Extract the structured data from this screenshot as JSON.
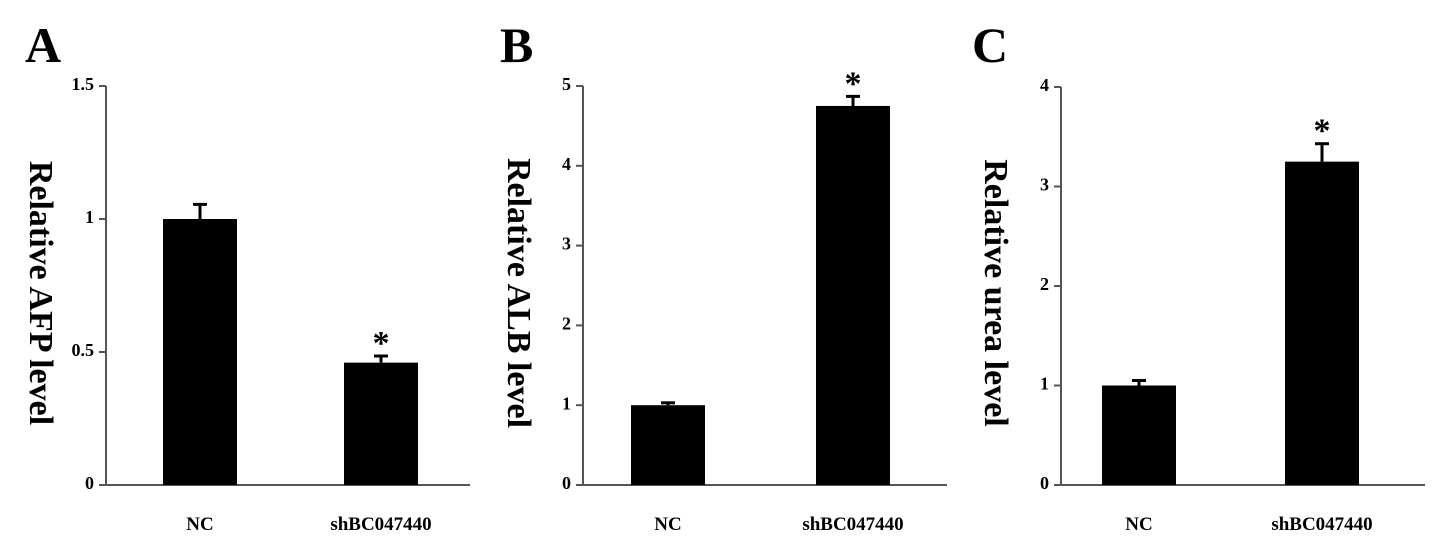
{
  "chart_data": [
    {
      "type": "bar",
      "panel": "A",
      "categories": [
        "NC",
        "shBC047440"
      ],
      "values": [
        1.0,
        0.46
      ],
      "errors": [
        0.055,
        0.025
      ],
      "significance": [
        "",
        "*"
      ],
      "ylabel": "Relative AFP level",
      "xlabel": "",
      "ylim": [
        0,
        1.5
      ],
      "yticks": [
        0,
        0.5,
        1,
        1.5
      ],
      "ytick_labels": [
        "0",
        "0.5",
        "1",
        "1.5"
      ],
      "bar_color": "#000000",
      "grid": false
    },
    {
      "type": "bar",
      "panel": "B",
      "categories": [
        "NC",
        "shBC047440"
      ],
      "values": [
        1.0,
        4.75
      ],
      "errors": [
        0.03,
        0.12
      ],
      "significance": [
        "",
        "*"
      ],
      "ylabel": "Relative ALB level",
      "xlabel": "",
      "ylim": [
        0,
        5
      ],
      "yticks": [
        0,
        1,
        2,
        3,
        4,
        5
      ],
      "ytick_labels": [
        "0",
        "1",
        "2",
        "3",
        "4",
        "5"
      ],
      "bar_color": "#000000",
      "grid": false
    },
    {
      "type": "bar",
      "panel": "C",
      "categories": [
        "NC",
        "shBC047440"
      ],
      "values": [
        1.0,
        3.25
      ],
      "errors": [
        0.05,
        0.18
      ],
      "significance": [
        "",
        "*"
      ],
      "ylabel": "Relative urea level",
      "xlabel": "",
      "ylim": [
        0,
        4
      ],
      "yticks": [
        0,
        1,
        2,
        3,
        4
      ],
      "ytick_labels": [
        "0",
        "1",
        "2",
        "3",
        "4"
      ],
      "bar_color": "#000000",
      "grid": false
    }
  ]
}
